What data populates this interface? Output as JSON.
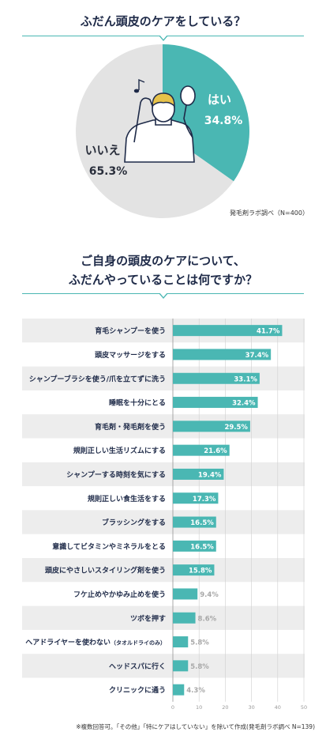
{
  "header": {
    "title1": "ふだん頭皮のケアをしている？",
    "title2_line1": "ご自身の頭皮のケアについて、",
    "title2_line2": "ふだんやっていることは何ですか？"
  },
  "source_note": "発毛剤ラボ調べ（N=400）",
  "footnote": "※複数回答可。「その他」「特にケアはしていない」を除いて作成(発毛剤ラボ調べ N=139)",
  "colors": {
    "teal": "#4ab7b3",
    "gray": "#e3e3e3",
    "navy": "#1e2a48",
    "row_alt": "#ededed"
  },
  "chart_data": [
    {
      "type": "pie",
      "title": "ふだん頭皮のケアをしている？",
      "slices": [
        {
          "label": "はい",
          "value": 34.8,
          "value_label": "34.8%"
        },
        {
          "label": "いいえ",
          "value": 65.3,
          "value_label": "65.3%"
        }
      ]
    },
    {
      "type": "bar",
      "orientation": "horizontal",
      "title": "ご自身の頭皮のケアについて、ふだんやっていることは何ですか？",
      "xlim": [
        0,
        50
      ],
      "xticks": [
        0,
        10,
        20,
        30,
        40,
        50
      ],
      "categories": [
        "育毛シャンプーを使う",
        "頭皮マッサージをする",
        "シャンプーブラシを使う/爪を立てずに洗う",
        "睡眠を十分にとる",
        "育毛剤・発毛剤を使う",
        "規則正しい生活リズムにする",
        "シャンプーする時刻を気にする",
        "規則正しい食生活をする",
        "ブラッシングをする",
        "意識してビタミンやミネラルをとる",
        "頭皮にやさしいスタイリング剤を使う",
        "フケ止めやかゆみ止めを使う",
        "ツボを押す",
        "ヘアドライヤーを使わない",
        "ヘッドスパに行く",
        "クリニックに通う"
      ],
      "category_notes": [
        "",
        "",
        "",
        "",
        "",
        "",
        "",
        "",
        "",
        "",
        "",
        "",
        "",
        "（タオルドライのみ）",
        "",
        ""
      ],
      "values": [
        41.7,
        37.4,
        33.1,
        32.4,
        29.5,
        21.6,
        19.4,
        17.3,
        16.5,
        16.5,
        15.8,
        9.4,
        8.6,
        5.8,
        5.8,
        4.3
      ],
      "value_labels": [
        "41.7%",
        "37.4%",
        "33.1%",
        "32.4%",
        "29.5%",
        "21.6%",
        "19.4%",
        "17.3%",
        "16.5%",
        "16.5%",
        "15.8%",
        "9.4%",
        "8.6%",
        "5.8%",
        "5.8%",
        "4.3%"
      ]
    }
  ]
}
